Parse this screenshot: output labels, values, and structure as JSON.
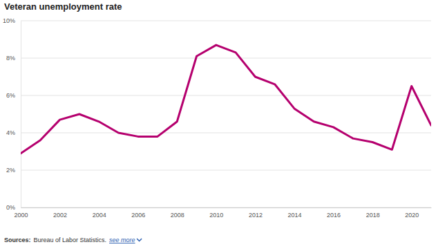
{
  "chart_data": {
    "type": "line",
    "title": "Veteran unemployment rate",
    "x": [
      2000,
      2001,
      2002,
      2003,
      2004,
      2005,
      2006,
      2007,
      2008,
      2009,
      2010,
      2011,
      2012,
      2013,
      2014,
      2015,
      2016,
      2017,
      2018,
      2019,
      2020,
      2021
    ],
    "values": [
      2.9,
      3.6,
      4.7,
      5.0,
      4.6,
      4.0,
      3.8,
      3.8,
      4.6,
      8.1,
      8.7,
      8.3,
      7.0,
      6.6,
      5.3,
      4.6,
      4.3,
      3.7,
      3.5,
      3.1,
      6.5,
      4.4
    ],
    "color": "#b5006e",
    "xlim": [
      2000,
      2021
    ],
    "xticks": [
      2000,
      2002,
      2004,
      2006,
      2008,
      2010,
      2012,
      2014,
      2016,
      2018,
      2020
    ],
    "ylim": [
      0,
      10
    ],
    "yticks": [
      {
        "value": 0,
        "label": "0%"
      },
      {
        "value": 2,
        "label": "2%"
      },
      {
        "value": 4,
        "label": "4%"
      },
      {
        "value": 6,
        "label": "6%"
      },
      {
        "value": 8,
        "label": "8%"
      },
      {
        "value": 10,
        "label": "10%"
      }
    ],
    "grid": true,
    "source_label": "Sources:",
    "source": "Bureau of Labor Statistics.",
    "source_link": "see more"
  }
}
